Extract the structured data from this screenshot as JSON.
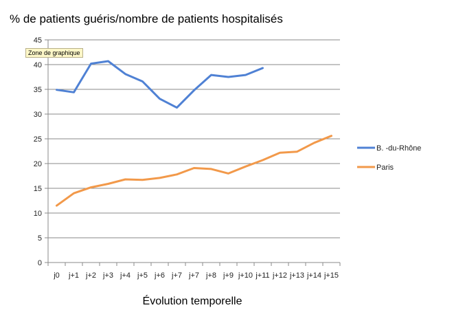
{
  "chart_data": {
    "type": "line",
    "title": "% de patients guéris/nombre de patients hospitalisés",
    "xlabel": "Évolution temporelle",
    "ylabel": "",
    "ylim": [
      0,
      45
    ],
    "yticks": [
      0,
      5,
      10,
      15,
      20,
      25,
      30,
      35,
      40,
      45
    ],
    "grid": true,
    "legend_position": "right",
    "categories": [
      "j0",
      "j+1",
      "j+2",
      "j+3",
      "j+4",
      "j+5",
      "j+6",
      "j+7",
      "j+7",
      "j+8",
      "j+9",
      "j+10",
      "j+11",
      "j+12",
      "j+13",
      "j+14",
      "j+15"
    ],
    "series": [
      {
        "name": "B. -du-Rhône",
        "color": "#4f81d4",
        "values": [
          34.9,
          34.4,
          40.2,
          40.7,
          38.1,
          36.6,
          33.1,
          31.3,
          34.8,
          37.9,
          37.5,
          37.9,
          39.3,
          null,
          null,
          null,
          null
        ]
      },
      {
        "name": "Paris",
        "color": "#f2994a",
        "values": [
          11.5,
          14.0,
          15.2,
          15.9,
          16.8,
          16.7,
          17.1,
          17.8,
          19.1,
          18.9,
          18.0,
          19.4,
          20.7,
          22.2,
          22.4,
          24.2,
          25.6
        ]
      }
    ]
  },
  "tooltip": "Zone de graphique"
}
